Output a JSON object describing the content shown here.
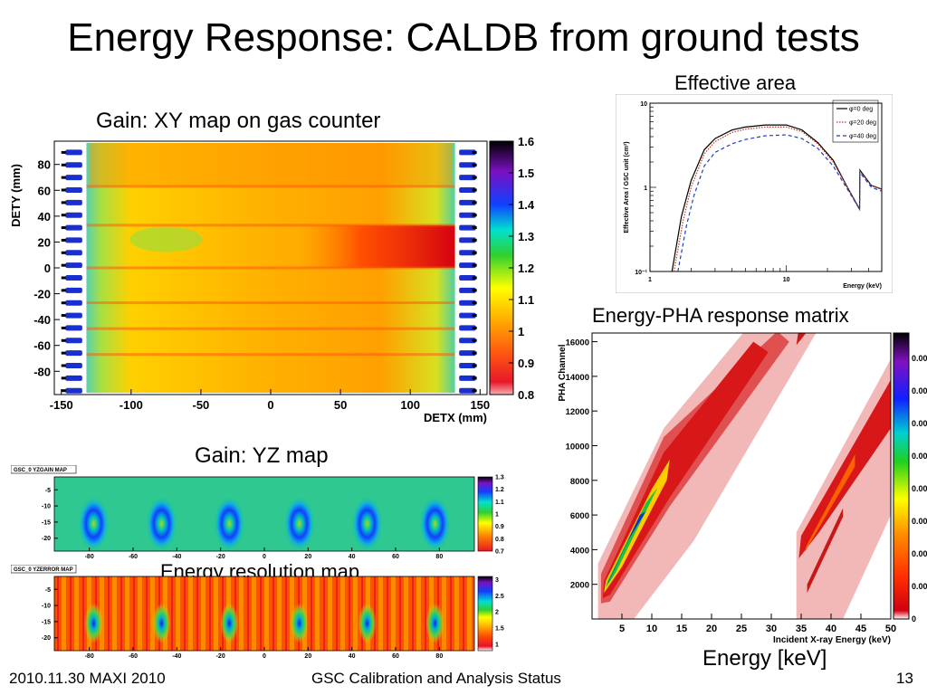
{
  "slide": {
    "title": "Energy Response: CALDB from ground tests",
    "footer_left": "2010.11.30 MAXI 2010",
    "footer_center": "GSC Calibration and Analysis Status",
    "page_number": "13"
  },
  "captions": {
    "gain_xy": "Gain: XY map on gas counter",
    "effective_area": "Effective area",
    "energy_pha": "Energy-PHA response matrix",
    "gain_yz": "Gain: YZ map",
    "energy_resolution": "Energy resolution map",
    "energy_kev": "Energy [keV]"
  },
  "chart_data": [
    {
      "id": "gain-xy-map",
      "type": "heatmap",
      "xlabel": "DETX (mm)",
      "ylabel": "DETY (mm)",
      "xticks": [
        -150,
        -100,
        -50,
        0,
        50,
        100,
        150
      ],
      "yticks": [
        -80,
        -60,
        -40,
        -20,
        0,
        20,
        40,
        60,
        80
      ],
      "xlim": [
        -155,
        155
      ],
      "ylim": [
        -98,
        98
      ],
      "colorbar": {
        "ticks": [
          0.8,
          0.9,
          1,
          1.1,
          1.2,
          1.3,
          1.4,
          1.5,
          1.6
        ],
        "range": [
          0.8,
          1.6
        ]
      }
    },
    {
      "id": "effective-area",
      "type": "line",
      "xlabel": "Energy (keV)",
      "ylabel": "Effective Area / GSC unit (cm²)",
      "xscale": "log",
      "yscale": "log",
      "xticks": [
        "1",
        "10"
      ],
      "yticks": [
        "10⁻¹",
        "1",
        "10"
      ],
      "xlim": [
        1,
        50
      ],
      "ylim": [
        0.1,
        10
      ],
      "legend": "top-right",
      "series": [
        {
          "name": "φ=0 deg",
          "color": "#000000",
          "dash": "solid",
          "x": [
            1.45,
            1.7,
            2,
            2.5,
            3,
            4,
            5,
            7,
            10,
            13,
            17,
            22,
            28,
            34.4,
            34.6,
            42,
            50
          ],
          "y": [
            0.1,
            0.45,
            1.2,
            2.8,
            3.8,
            4.8,
            5.2,
            5.5,
            5.5,
            4.8,
            3.4,
            2.1,
            1.0,
            0.55,
            1.6,
            1.05,
            0.95
          ]
        },
        {
          "name": "φ=20 deg",
          "color": "#c0392b",
          "dash": "dotted",
          "x": [
            1.5,
            1.75,
            2,
            2.5,
            3,
            4,
            5,
            7,
            10,
            13,
            17,
            22,
            28,
            34.4,
            34.6,
            42,
            50
          ],
          "y": [
            0.1,
            0.4,
            1.0,
            2.5,
            3.5,
            4.5,
            4.9,
            5.2,
            5.2,
            4.6,
            3.3,
            2.0,
            1.0,
            0.55,
            1.55,
            1.05,
            0.95
          ]
        },
        {
          "name": "φ=40 deg",
          "color": "#1f3fbf",
          "dash": "dashed",
          "x": [
            1.6,
            1.85,
            2.1,
            2.5,
            3,
            4,
            5,
            7,
            10,
            13,
            17,
            22,
            28,
            34.4,
            34.6,
            42,
            50
          ],
          "y": [
            0.1,
            0.35,
            0.8,
            1.8,
            2.6,
            3.3,
            3.7,
            4.1,
            4.2,
            3.8,
            2.9,
            1.8,
            0.95,
            0.55,
            1.5,
            1.0,
            0.9
          ]
        }
      ]
    },
    {
      "id": "energy-pha-matrix",
      "type": "heatmap",
      "xlabel": "Incident X-ray Energy (keV)",
      "ylabel": "PHA Channel",
      "xticks": [
        5,
        10,
        15,
        20,
        25,
        30,
        35,
        40,
        45,
        50
      ],
      "yticks": [
        2000,
        4000,
        6000,
        8000,
        10000,
        12000,
        14000,
        16000
      ],
      "xlim": [
        0,
        50
      ],
      "ylim": [
        0,
        16500
      ],
      "colorbar": {
        "ticks": [
          "0.000",
          "0.000",
          "0.000",
          "0.000",
          "0.000",
          "0.000",
          "0.000",
          "0.000",
          "0"
        ]
      }
    },
    {
      "id": "gain-yz-map",
      "type": "heatmap",
      "panel_label": "GSC_0 YZGAIN MAP",
      "xticks": [
        -80,
        -60,
        -40,
        -20,
        0,
        20,
        40,
        60,
        80
      ],
      "yticks": [
        -5,
        -10,
        -15,
        -20
      ],
      "xlim": [
        -96,
        96
      ],
      "ylim": [
        -24,
        -1
      ],
      "colorbar": {
        "ticks": [
          0.7,
          0.8,
          0.9,
          1,
          1.1,
          1.2,
          1.3
        ],
        "range": [
          0.7,
          1.3
        ]
      },
      "spot_centers_x": [
        -78,
        -47,
        -16,
        16,
        47,
        78
      ]
    },
    {
      "id": "energy-resolution-map",
      "type": "heatmap",
      "panel_label": "GSC_0 YZERROR MAP",
      "xticks": [
        -80,
        -60,
        -40,
        -20,
        0,
        20,
        40,
        60,
        80
      ],
      "yticks": [
        -5,
        -10,
        -15,
        -20
      ],
      "xlim": [
        -96,
        96
      ],
      "ylim": [
        -24,
        -1
      ],
      "colorbar": {
        "ticks": [
          1,
          1.5,
          2,
          2.5,
          3
        ],
        "range": [
          0.8,
          3.1
        ]
      },
      "spot_centers_x": [
        -78,
        -47,
        -16,
        16,
        47,
        78
      ]
    }
  ]
}
